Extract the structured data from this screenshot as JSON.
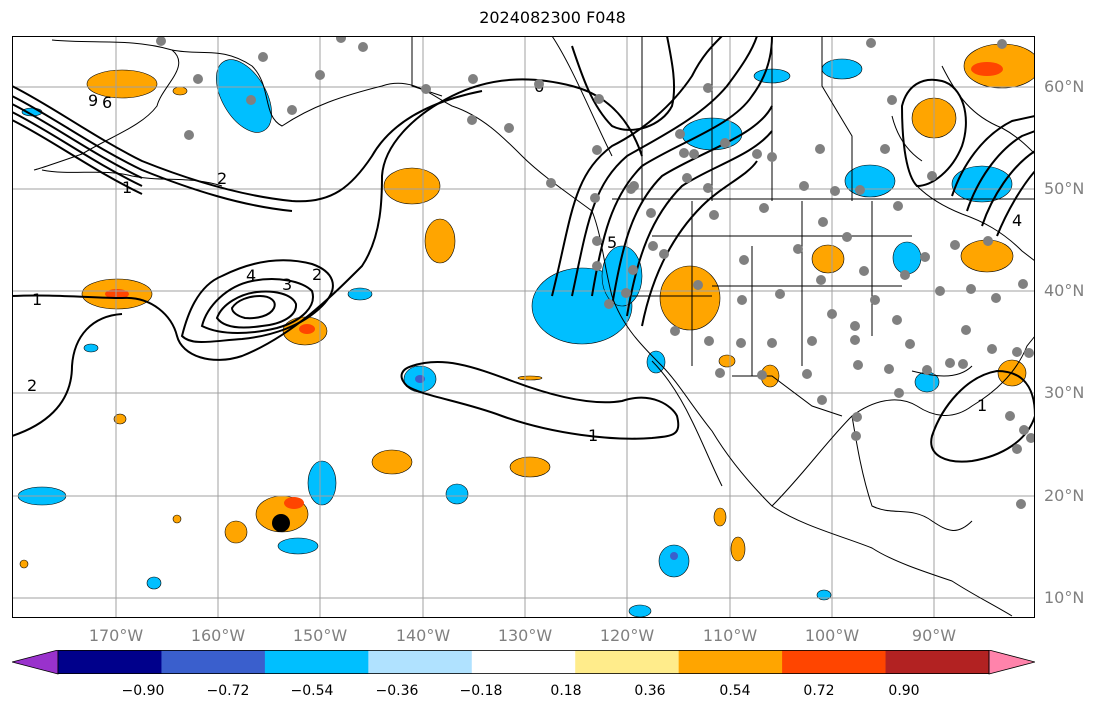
{
  "title": "2024082300 F048",
  "map": {
    "lat_labels": [
      "60°N",
      "50°N",
      "40°N",
      "30°N",
      "20°N",
      "10°N"
    ],
    "lon_labels": [
      "170°W",
      "160°W",
      "150°W",
      "140°W",
      "130°W",
      "120°W",
      "110°W",
      "100°W",
      "90°W"
    ],
    "extent": {
      "lon_min": -180,
      "lon_max": -80,
      "lat_min": 8,
      "lat_max": 65
    },
    "contour_labels": [
      "1",
      "1",
      "2",
      "3",
      "4",
      "1",
      "2",
      "6",
      "9",
      "6",
      "5",
      "1",
      "4",
      "2"
    ],
    "colors": {
      "grid": "#a0a0a0",
      "coast": "#000000",
      "contour": "#000000",
      "station_dot": "#808080",
      "positive_fill": "#ffa500",
      "negative_fill": "#00bfff",
      "strong_positive": "#ff4500",
      "strong_negative": "#3a5fcd"
    }
  },
  "colorbar": {
    "ticks": [
      "−0.90",
      "−0.72",
      "−0.54",
      "−0.36",
      "−0.18",
      "0.18",
      "0.36",
      "0.54",
      "0.72",
      "0.90"
    ],
    "colors": [
      "#9932cc",
      "#00008b",
      "#3a5fcd",
      "#00bfff",
      "#b0e2ff",
      "#ffffff",
      "#ffec8b",
      "#ffa500",
      "#ff4500",
      "#b22222",
      "#ff83ab"
    ]
  }
}
